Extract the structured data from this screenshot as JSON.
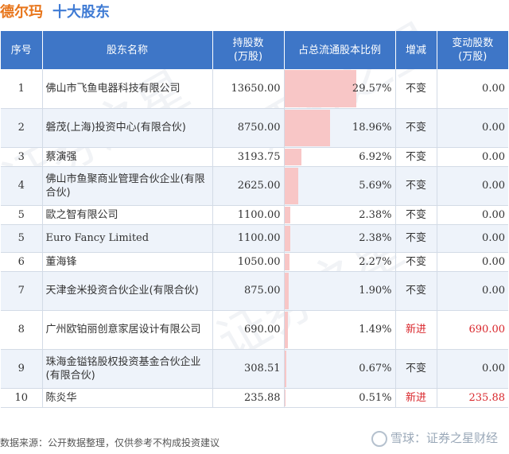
{
  "header": {
    "company": "德尔玛",
    "section": "十大股东"
  },
  "table": {
    "columns": [
      "序号",
      "股东名称",
      "持股数\n(万股)",
      "占总流通股本比例",
      "增减",
      "变动股数\n(万股)"
    ],
    "rows": [
      {
        "idx": "1",
        "name": "佛山市飞鱼电器科技有限公司",
        "shares": "13650.00",
        "ratio": "29.57%",
        "ratio_value": 29.57,
        "change": "不变",
        "delta": "0.00",
        "is_new": false
      },
      {
        "idx": "2",
        "name": "磐茂(上海)投资中心(有限合伙)",
        "shares": "8750.00",
        "ratio": "18.96%",
        "ratio_value": 18.96,
        "change": "不变",
        "delta": "0.00",
        "is_new": false
      },
      {
        "idx": "3",
        "name": "蔡演强",
        "shares": "3193.75",
        "ratio": "6.92%",
        "ratio_value": 6.92,
        "change": "不变",
        "delta": "0.00",
        "is_new": false
      },
      {
        "idx": "4",
        "name": "佛山市鱼聚商业管理合伙企业(有限合伙)",
        "shares": "2625.00",
        "ratio": "5.69%",
        "ratio_value": 5.69,
        "change": "不变",
        "delta": "0.00",
        "is_new": false
      },
      {
        "idx": "5",
        "name": "歐之智有限公司",
        "shares": "1100.00",
        "ratio": "2.38%",
        "ratio_value": 2.38,
        "change": "不变",
        "delta": "0.00",
        "is_new": false
      },
      {
        "idx": "5",
        "name": "Euro Fancy Limited",
        "shares": "1100.00",
        "ratio": "2.38%",
        "ratio_value": 2.38,
        "change": "不变",
        "delta": "0.00",
        "is_new": false
      },
      {
        "idx": "6",
        "name": "董海锋",
        "shares": "1050.00",
        "ratio": "2.27%",
        "ratio_value": 2.27,
        "change": "不变",
        "delta": "0.00",
        "is_new": false
      },
      {
        "idx": "7",
        "name": "天津金米投资合伙企业(有限合伙)",
        "shares": "875.00",
        "ratio": "1.90%",
        "ratio_value": 1.9,
        "change": "不变",
        "delta": "0.00",
        "is_new": false
      },
      {
        "idx": "8",
        "name": "广州欧铂丽创意家居设计有限公司",
        "shares": "690.00",
        "ratio": "1.49%",
        "ratio_value": 1.49,
        "change": "新进",
        "delta": "690.00",
        "is_new": true
      },
      {
        "idx": "9",
        "name": "珠海金镒铭股权投资基金合伙企业(有限合伙)",
        "shares": "308.51",
        "ratio": "0.67%",
        "ratio_value": 0.67,
        "change": "不变",
        "delta": "0.00",
        "is_new": false
      },
      {
        "idx": "10",
        "name": "陈炎华",
        "shares": "235.88",
        "ratio": "0.51%",
        "ratio_value": 0.51,
        "change": "新进",
        "delta": "235.88",
        "is_new": true
      }
    ]
  },
  "footer": {
    "source": "数据来源：公开数据整理，仅供参考不构成投资建议"
  },
  "brand": {
    "text": "雪球：证券之星财经"
  },
  "colors": {
    "header_bg": "#3e76c7",
    "bar_fill": "#f8c6c6",
    "new_red": "#d9262b",
    "company_orange": "#e8751a",
    "title_blue": "#3f7bd4"
  }
}
